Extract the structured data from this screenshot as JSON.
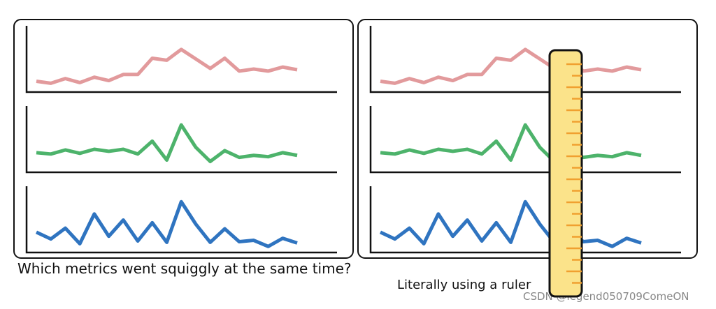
{
  "metrics": [
    {
      "color": "#e29a9c",
      "values": [
        16,
        13,
        20,
        14,
        22,
        17,
        26,
        26,
        50,
        47,
        63,
        49,
        35,
        50,
        31,
        34,
        31,
        37,
        33
      ]
    },
    {
      "color": "#4db36b",
      "values": [
        29,
        27,
        33,
        28,
        34,
        31,
        34,
        27,
        46,
        18,
        70,
        37,
        16,
        32,
        22,
        25,
        23,
        29,
        25
      ]
    },
    {
      "color": "#2f74c0",
      "values": [
        30,
        20,
        36,
        13,
        57,
        24,
        48,
        17,
        44,
        15,
        75,
        42,
        15,
        35,
        16,
        18,
        9,
        21,
        14
      ]
    }
  ],
  "left_caption": "Which metrics went squiggly at the same time?",
  "right_caption": "Literally using a ruler",
  "watermark": "CSDN @legend050709ComeON"
}
